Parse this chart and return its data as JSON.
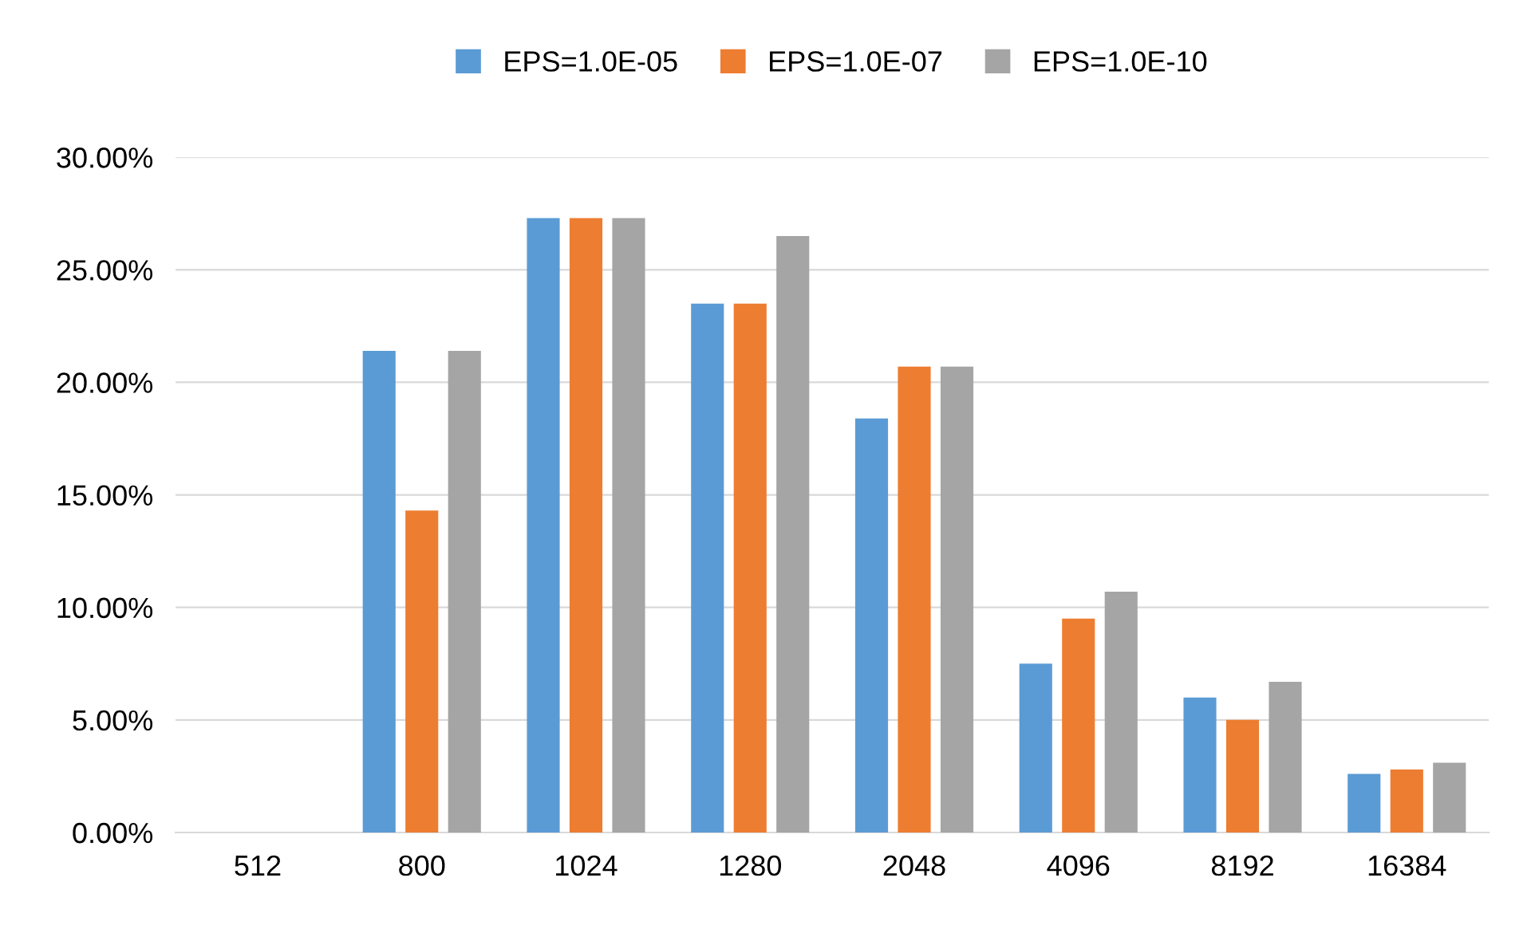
{
  "chart_data": {
    "type": "bar",
    "categories": [
      "512",
      "800",
      "1024",
      "1280",
      "2048",
      "4096",
      "8192",
      "16384"
    ],
    "series": [
      {
        "name": "EPS=1.0E-05",
        "color": "#5b9bd5",
        "values": [
          0,
          21.4,
          27.3,
          23.5,
          18.4,
          7.5,
          6.0,
          2.6
        ]
      },
      {
        "name": "EPS=1.0E-07",
        "color": "#ed7d31",
        "values": [
          0,
          14.3,
          27.3,
          23.5,
          20.7,
          9.5,
          5.0,
          2.8
        ]
      },
      {
        "name": "EPS=1.0E-10",
        "color": "#a5a5a5",
        "values": [
          0,
          21.4,
          27.3,
          26.5,
          20.7,
          10.7,
          6.7,
          3.1
        ]
      }
    ],
    "ylim": [
      0,
      30
    ],
    "yticks": [
      {
        "value": 0,
        "label": "0.00%"
      },
      {
        "value": 5,
        "label": "5.00%"
      },
      {
        "value": 10,
        "label": "10.00%"
      },
      {
        "value": 15,
        "label": "15.00%"
      },
      {
        "value": 20,
        "label": "20.00%"
      },
      {
        "value": 25,
        "label": "25.00%"
      },
      {
        "value": 30,
        "label": "30.00%"
      }
    ],
    "grid": "y",
    "legend": "top"
  }
}
